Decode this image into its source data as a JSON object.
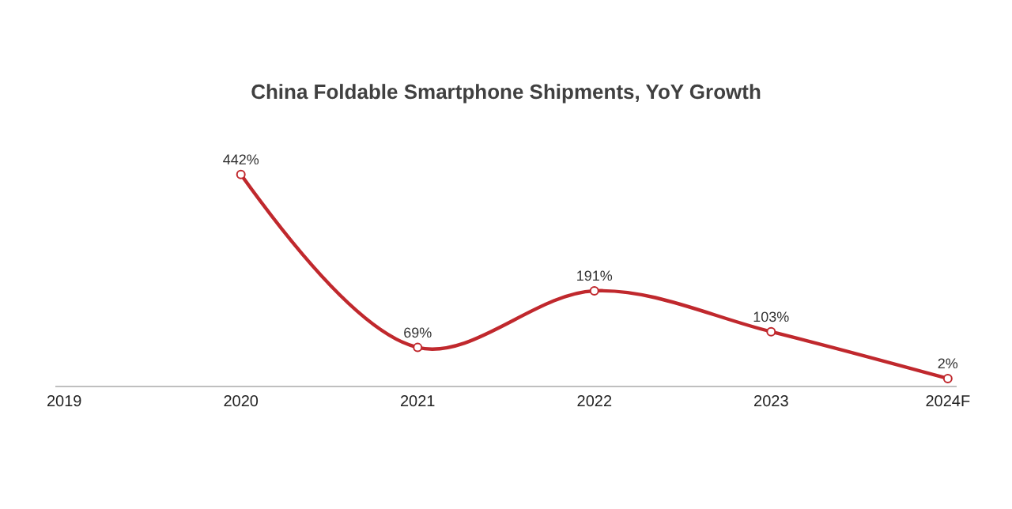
{
  "chart_data": {
    "type": "line",
    "title": "China Foldable Smartphone Shipments, YoY Growth",
    "categories": [
      "2019",
      "2020",
      "2021",
      "2022",
      "2023",
      "2024F"
    ],
    "series": [
      {
        "color": "#c0282d",
        "values": [
          null,
          442,
          69,
          191,
          103,
          2
        ],
        "value_labels": [
          null,
          "442%",
          "69%",
          "191%",
          "103%",
          "2%"
        ]
      }
    ],
    "marker": "circle",
    "line_style": "solid",
    "legend": false
  }
}
